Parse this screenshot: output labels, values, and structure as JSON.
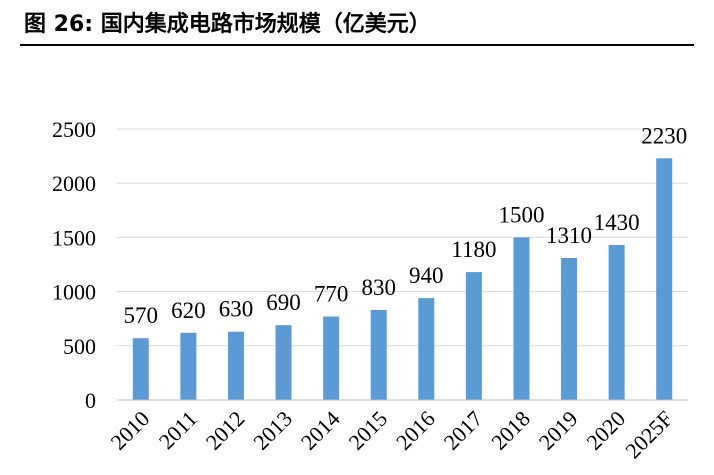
{
  "figure": {
    "title": "图 26:  国内集成电路市场规模（亿美元）"
  },
  "chart_data": {
    "type": "bar",
    "title": "",
    "xlabel": "",
    "ylabel": "",
    "categories": [
      "2010",
      "2011",
      "2012",
      "2013",
      "2014",
      "2015",
      "2016",
      "2017",
      "2018",
      "2019",
      "2020",
      "2025F"
    ],
    "values": [
      570,
      620,
      630,
      690,
      770,
      830,
      940,
      1180,
      1500,
      1310,
      1430,
      2230
    ],
    "data_labels": [
      "570",
      "620",
      "630",
      "690",
      "770",
      "830",
      "940",
      "1180",
      "1500",
      "1310",
      "1430",
      "2230"
    ],
    "ylim": [
      0,
      2500
    ],
    "yticks": [
      0,
      500,
      1000,
      1500,
      2000,
      2500
    ],
    "ytick_labels": [
      "0",
      "500",
      "1000",
      "1500",
      "2000",
      "2500"
    ],
    "grid": true,
    "legend": "none",
    "colors": {
      "bar": "#5b9bd5",
      "grid": "#d9d9d9",
      "axis": "#bfbfbf"
    }
  }
}
